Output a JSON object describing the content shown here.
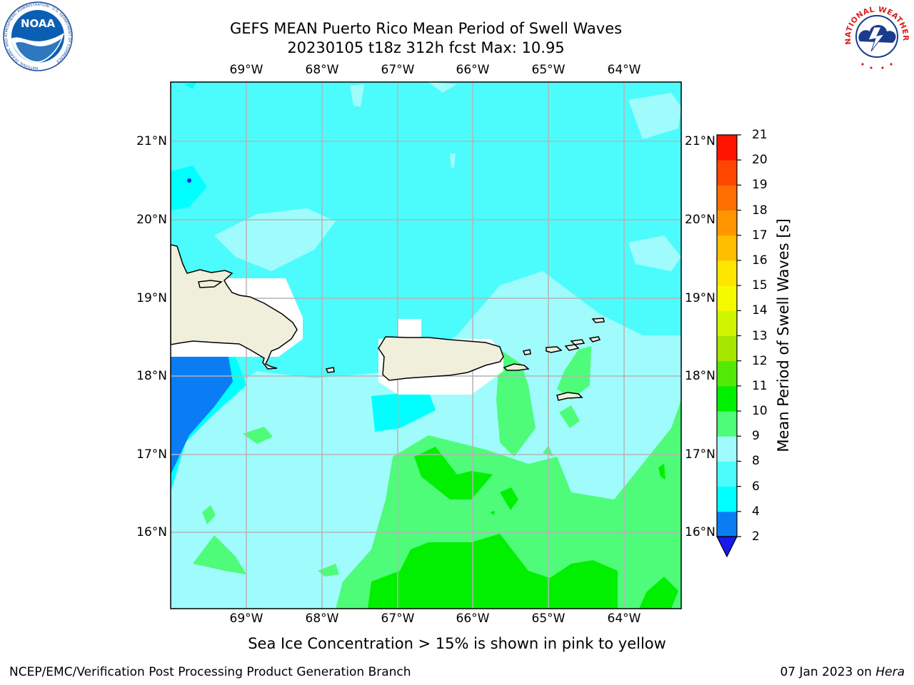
{
  "title_line1": "GEFS MEAN Puerto Rico Mean Period of Swell Waves",
  "title_line2": "20230105 t18z 312h fcst   Max: 10.95",
  "map": {
    "lon_labels": [
      "69°W",
      "68°W",
      "67°W",
      "66°W",
      "65°W",
      "64°W"
    ],
    "lat_labels": [
      "21°N",
      "20°N",
      "19°N",
      "18°N",
      "17°N",
      "16°N"
    ],
    "land_color": "#efefdc",
    "gridline_color": "#b4b4b4"
  },
  "colorbar": {
    "title": "Mean Period of Swell Waves [s]",
    "tick_labels": [
      "2",
      "4",
      "6",
      "8",
      "9",
      "10",
      "11",
      "12",
      "13",
      "14",
      "15",
      "16",
      "17",
      "18",
      "19",
      "20",
      "21"
    ],
    "colors": [
      "#0a7df5",
      "#00ffff",
      "#4cfcfc",
      "#a0fcfc",
      "#4efc7a",
      "#00f000",
      "#52ea05",
      "#a6e600",
      "#cff500",
      "#f5fa00",
      "#ffe600",
      "#ffbf00",
      "#ff9600",
      "#ff6e00",
      "#ff4600",
      "#ff1400"
    ],
    "under_color": "#1818f0"
  },
  "subtitle": "Sea Ice Concentration > 15% is shown in pink to yellow",
  "footer_left": "NCEP/EMC/Verification Post Processing Product Generation Branch",
  "footer_date": "07 Jan 2023 on ",
  "footer_host": "Hera",
  "logos": {
    "noaa_text": "NOAA",
    "noaa_ring_text": "NATIONAL OCEANIC AND ATMOSPHERIC ADMINISTRATION · U.S. DEPARTMENT OF COMMERCE",
    "nws_ring_text": "NATIONAL WEATHER SERVICE"
  }
}
